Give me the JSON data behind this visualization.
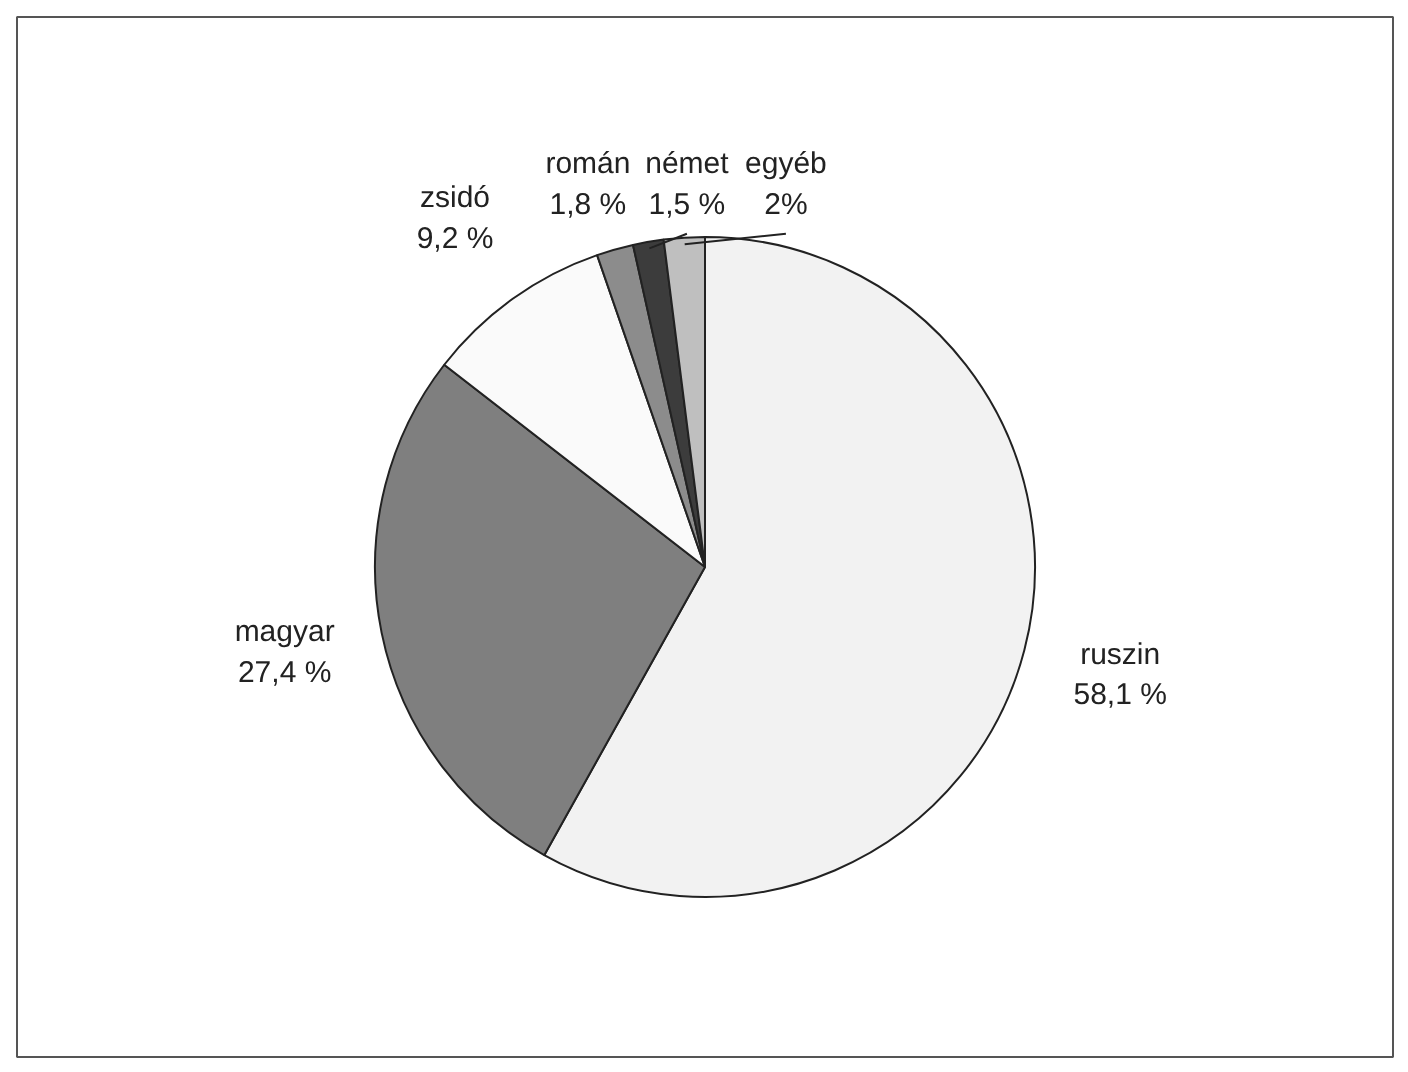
{
  "chart_data": {
    "type": "pie",
    "categories": [
      "ruszin",
      "magyar",
      "zsidó",
      "román",
      "német",
      "egyéb"
    ],
    "values": [
      58.1,
      27.4,
      9.2,
      1.8,
      1.5,
      2
    ],
    "colors": [
      "#f2f2f2",
      "#7f7f7f",
      "#fafafa",
      "#8c8c8c",
      "#3c3c3c",
      "#bfbfbf"
    ],
    "value_labels": [
      "58,1 %",
      "27,4 %",
      "9,2 %",
      "1,8 %",
      "1,5 %",
      "2%"
    ]
  }
}
